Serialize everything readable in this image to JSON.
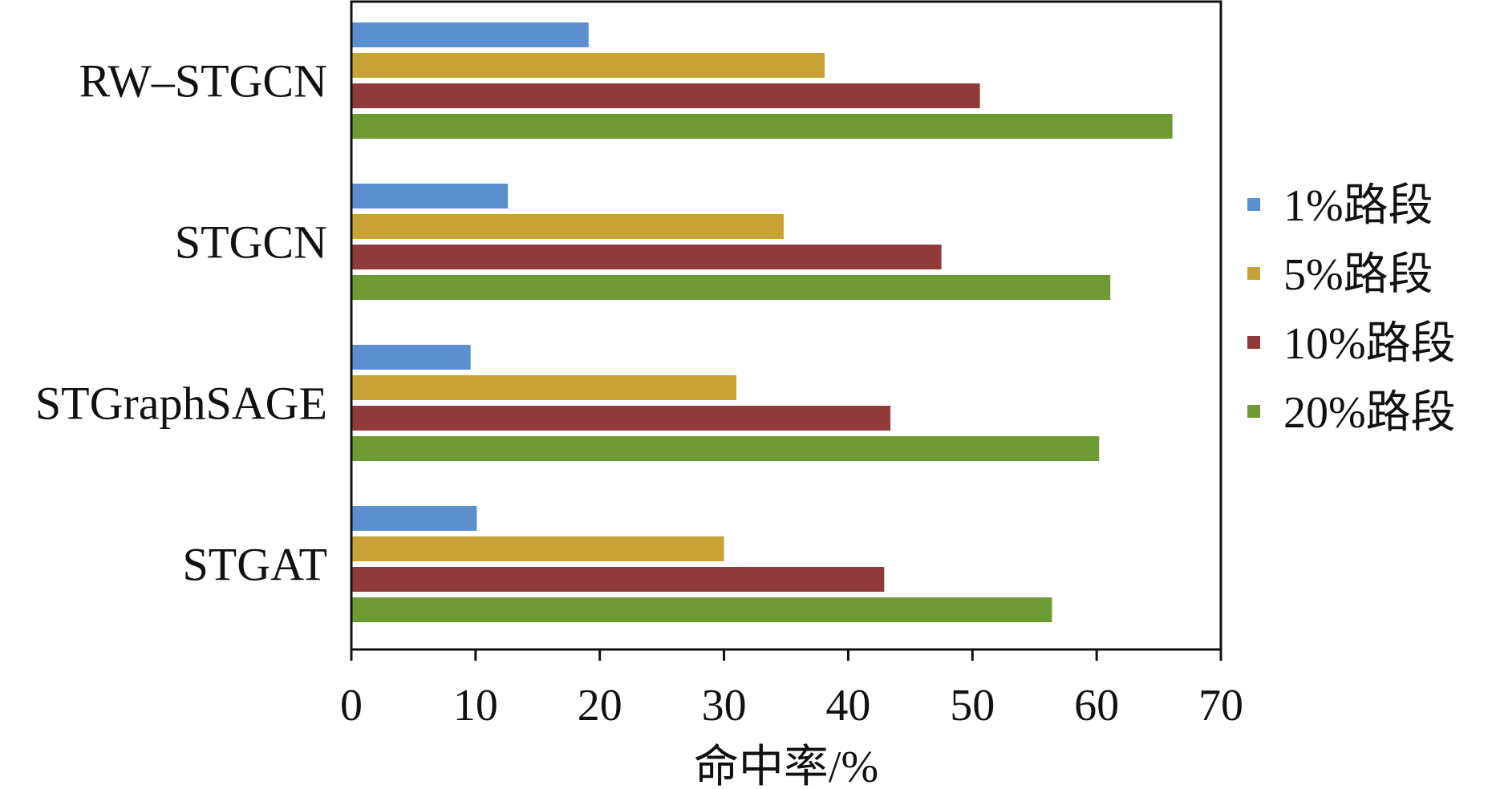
{
  "chart_data": {
    "type": "bar",
    "orientation": "horizontal",
    "categories": [
      "RW–STGCN",
      "STGCN",
      "STGraphSAGE",
      "STGAT"
    ],
    "series": [
      {
        "name": "1%路段",
        "color": "#5b8fd0",
        "values": [
          19.1,
          12.6,
          9.6,
          10.1
        ]
      },
      {
        "name": "5%路段",
        "color": "#c9a236",
        "values": [
          38.1,
          34.8,
          31.0,
          30.0
        ]
      },
      {
        "name": "10%路段",
        "color": "#903a3a",
        "values": [
          50.6,
          47.5,
          43.4,
          42.9
        ]
      },
      {
        "name": "20%路段",
        "color": "#6e9a33",
        "values": [
          66.1,
          61.1,
          60.2,
          56.4
        ]
      }
    ],
    "x_ticks": [
      "0",
      "10",
      "20",
      "30",
      "40",
      "50",
      "60",
      "70"
    ],
    "xlim": [
      0,
      70
    ],
    "xlabel": "命中率/%",
    "ylabel": "",
    "title": "",
    "grid": false,
    "legend_position": "right"
  }
}
